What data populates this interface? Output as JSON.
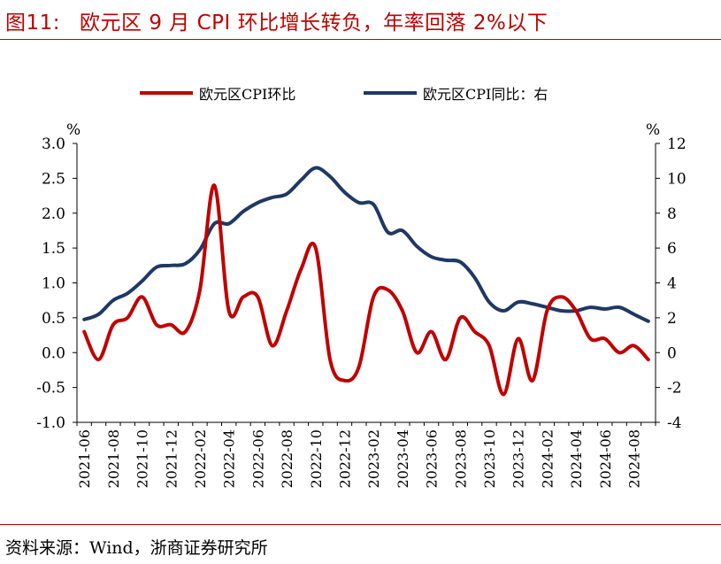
{
  "title": {
    "figure_no": "图11:",
    "text": "欧元区 9 月 CPI 环比增长转负，年率回落 2%以下"
  },
  "source": "资料来源：Wind，浙商证券研究所",
  "colors": {
    "mom": "#c00000",
    "yoy": "#1f3864",
    "title": "#c00000"
  },
  "chart_data": {
    "type": "line",
    "legend_position": "top-center",
    "grid": false,
    "left_axis": {
      "unit": "%",
      "ylim": [
        -1.0,
        3.0
      ],
      "ticks": [
        "-1.0",
        "-0.5",
        "0.0",
        "0.5",
        "1.0",
        "1.5",
        "2.0",
        "2.5",
        "3.0"
      ]
    },
    "right_axis": {
      "unit": "%",
      "ylim": [
        -4,
        12
      ],
      "ticks": [
        "-4",
        "-2",
        "0",
        "2",
        "4",
        "6",
        "8",
        "10",
        "12"
      ]
    },
    "x_tick_labels": [
      "2021-06",
      "2021-08",
      "2021-10",
      "2021-12",
      "2022-02",
      "2022-04",
      "2022-06",
      "2022-08",
      "2022-10",
      "2022-12",
      "2023-02",
      "2023-04",
      "2023-06",
      "2023-08",
      "2023-10",
      "2023-12",
      "2024-02",
      "2024-04",
      "2024-06",
      "2024-08"
    ],
    "x": [
      "2021-06",
      "2021-07",
      "2021-08",
      "2021-09",
      "2021-10",
      "2021-11",
      "2021-12",
      "2022-01",
      "2022-02",
      "2022-03",
      "2022-04",
      "2022-05",
      "2022-06",
      "2022-07",
      "2022-08",
      "2022-09",
      "2022-10",
      "2022-11",
      "2022-12",
      "2023-01",
      "2023-02",
      "2023-03",
      "2023-04",
      "2023-05",
      "2023-06",
      "2023-07",
      "2023-08",
      "2023-09",
      "2023-10",
      "2023-11",
      "2023-12",
      "2024-01",
      "2024-02",
      "2024-03",
      "2024-04",
      "2024-05",
      "2024-06",
      "2024-07",
      "2024-08",
      "2024-09"
    ],
    "series": [
      {
        "name": "欧元区CPI环比",
        "axis": "left",
        "color": "#c00000",
        "values": [
          0.3,
          -0.1,
          0.4,
          0.5,
          0.8,
          0.4,
          0.4,
          0.3,
          0.9,
          2.4,
          0.6,
          0.8,
          0.8,
          0.1,
          0.6,
          1.2,
          1.5,
          -0.1,
          -0.4,
          -0.2,
          0.8,
          0.9,
          0.6,
          0.0,
          0.3,
          -0.1,
          0.5,
          0.3,
          0.1,
          -0.6,
          0.2,
          -0.4,
          0.6,
          0.8,
          0.6,
          0.2,
          0.2,
          0.0,
          0.1,
          -0.1
        ]
      },
      {
        "name": "欧元区CPI同比：右",
        "axis": "right",
        "color": "#1f3864",
        "values": [
          1.9,
          2.2,
          3.0,
          3.4,
          4.1,
          4.9,
          5.0,
          5.1,
          5.9,
          7.4,
          7.4,
          8.1,
          8.6,
          8.9,
          9.1,
          9.9,
          10.6,
          10.1,
          9.2,
          8.6,
          8.5,
          6.9,
          7.0,
          6.1,
          5.5,
          5.3,
          5.2,
          4.3,
          2.9,
          2.4,
          2.9,
          2.8,
          2.6,
          2.4,
          2.4,
          2.6,
          2.5,
          2.6,
          2.2,
          1.8
        ]
      }
    ]
  }
}
